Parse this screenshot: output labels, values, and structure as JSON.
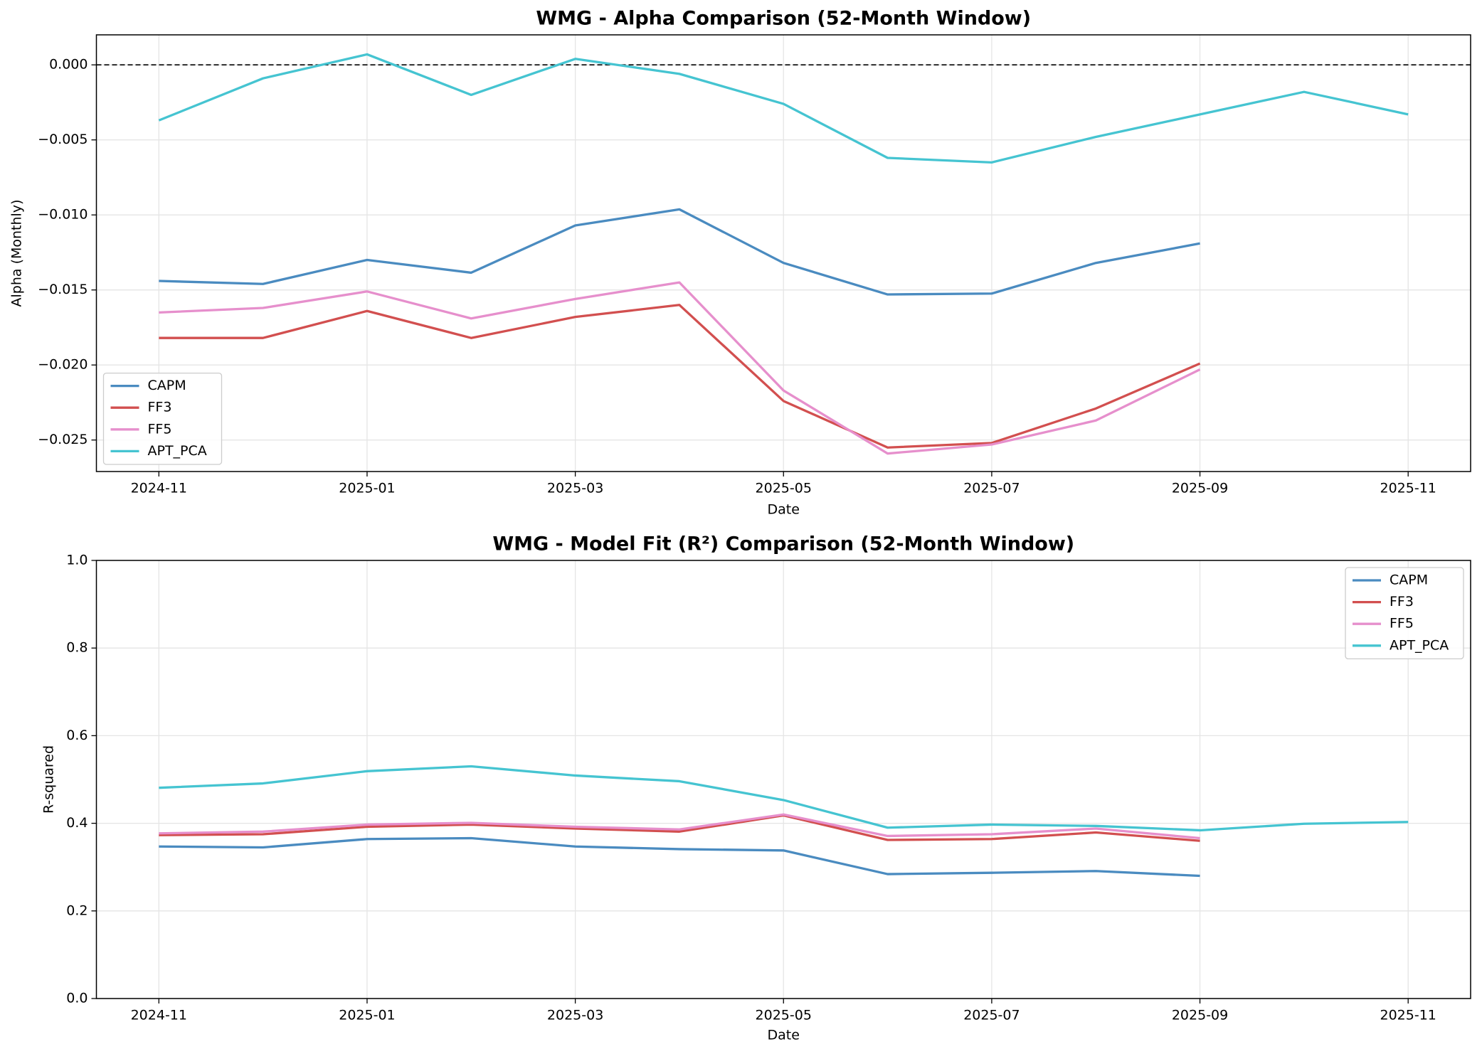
{
  "chart_data": [
    {
      "type": "line",
      "title": "WMG - Alpha Comparison (52-Month Window)",
      "x_label": "Date",
      "y_label": "Alpha (Monthly)",
      "x": [
        "2024-11",
        "2024-12",
        "2025-01",
        "2025-02",
        "2025-03",
        "2025-04",
        "2025-05",
        "2025-06",
        "2025-07",
        "2025-08",
        "2025-09",
        "2025-10",
        "2025-11"
      ],
      "xticks": [
        "2024-11",
        "2025-01",
        "2025-03",
        "2025-05",
        "2025-07",
        "2025-09",
        "2025-11"
      ],
      "ylim": [
        -0.0271,
        0.002
      ],
      "yticks": [
        {
          "value": -0.025,
          "label": "−0.025"
        },
        {
          "value": -0.02,
          "label": "−0.020"
        },
        {
          "value": -0.015,
          "label": "−0.015"
        },
        {
          "value": -0.01,
          "label": "−0.010"
        },
        {
          "value": -0.005,
          "label": "−0.005"
        },
        {
          "value": 0,
          "label": "0.000"
        }
      ],
      "hline": 0,
      "grid": true,
      "legend": "lower left",
      "series": [
        {
          "name": "CAPM",
          "color": "#4a8bc0",
          "values": [
            -0.0144,
            -0.0146,
            -0.013,
            -0.01385,
            -0.0107,
            -0.00963,
            -0.0132,
            -0.0153,
            -0.01524,
            -0.0132,
            -0.0119,
            null,
            null
          ]
        },
        {
          "name": "FF3",
          "color": "#d24f4f",
          "values": [
            -0.0182,
            -0.0182,
            -0.0164,
            -0.0182,
            -0.0168,
            -0.016,
            -0.0224,
            -0.0255,
            -0.0252,
            -0.0229,
            -0.0199,
            null,
            null
          ]
        },
        {
          "name": "FF5",
          "color": "#e68fcc",
          "values": [
            -0.0165,
            -0.0162,
            -0.0151,
            -0.0169,
            -0.0156,
            -0.0145,
            -0.0217,
            -0.0259,
            -0.0253,
            -0.0237,
            -0.0203,
            null,
            null
          ]
        },
        {
          "name": "APT_PCA",
          "color": "#45c4d1",
          "values": [
            -0.0037,
            -0.0009,
            0.0007,
            -0.002,
            0.0004,
            -0.0006,
            -0.0026,
            -0.0062,
            -0.0065,
            -0.0048,
            -0.0033,
            -0.0018,
            -0.0033
          ]
        }
      ]
    },
    {
      "type": "line",
      "title": "WMG - Model Fit (R²) Comparison (52-Month Window)",
      "x_label": "Date",
      "y_label": "R-squared",
      "x": [
        "2024-11",
        "2024-12",
        "2025-01",
        "2025-02",
        "2025-03",
        "2025-04",
        "2025-05",
        "2025-06",
        "2025-07",
        "2025-08",
        "2025-09",
        "2025-10",
        "2025-11"
      ],
      "xticks": [
        "2024-11",
        "2025-01",
        "2025-03",
        "2025-05",
        "2025-07",
        "2025-09",
        "2025-11"
      ],
      "ylim": [
        0,
        1
      ],
      "yticks": [
        {
          "value": 0,
          "label": "0.0"
        },
        {
          "value": 0.2,
          "label": "0.2"
        },
        {
          "value": 0.4,
          "label": "0.4"
        },
        {
          "value": 0.6,
          "label": "0.6"
        },
        {
          "value": 0.8,
          "label": "0.8"
        },
        {
          "value": 1,
          "label": "1.0"
        }
      ],
      "grid": true,
      "legend": "upper right",
      "series": [
        {
          "name": "CAPM",
          "color": "#4a8bc0",
          "values": [
            0.347,
            0.345,
            0.364,
            0.366,
            0.347,
            0.341,
            0.338,
            0.284,
            0.287,
            0.291,
            0.28,
            null,
            null
          ]
        },
        {
          "name": "FF3",
          "color": "#d24f4f",
          "values": [
            0.373,
            0.375,
            0.392,
            0.397,
            0.388,
            0.381,
            0.418,
            0.362,
            0.364,
            0.379,
            0.36,
            null,
            null
          ]
        },
        {
          "name": "FF5",
          "color": "#e68fcc",
          "values": [
            0.377,
            0.381,
            0.397,
            0.401,
            0.392,
            0.386,
            0.42,
            0.371,
            0.375,
            0.388,
            0.366,
            null,
            null
          ]
        },
        {
          "name": "APT_PCA",
          "color": "#45c4d1",
          "values": [
            0.481,
            0.491,
            0.519,
            0.53,
            0.509,
            0.496,
            0.453,
            0.39,
            0.397,
            0.394,
            0.384,
            0.399,
            0.403
          ]
        }
      ]
    }
  ]
}
